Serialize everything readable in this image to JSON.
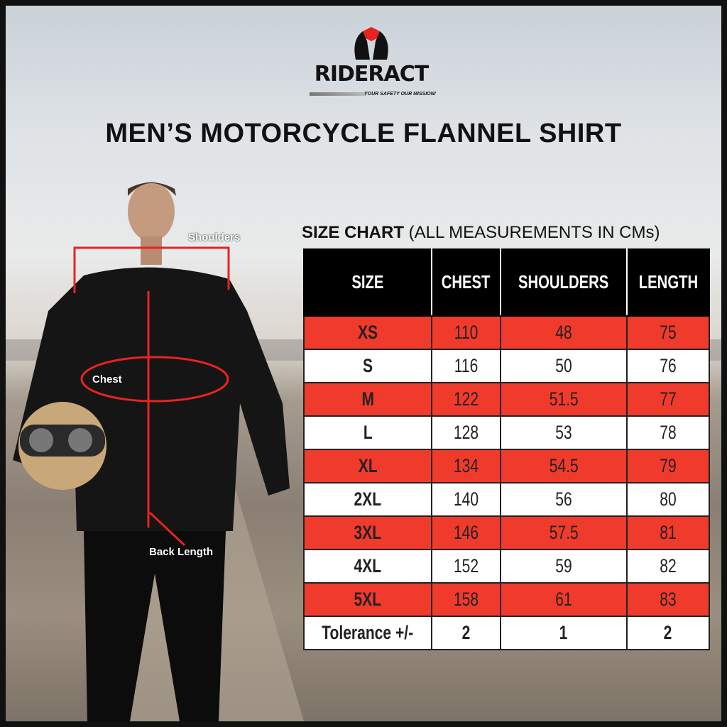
{
  "brand": {
    "name": "RIDERACT",
    "tagline": "YOUR SAFETY OUR MISSION!",
    "colors": {
      "red": "#e8231f",
      "black": "#111111"
    }
  },
  "title": "MEN’S MOTORCYCLE FLANNEL SHIRT",
  "size_chart": {
    "heading": "SIZE CHART",
    "note": "(ALL MEASUREMENTS IN CMs)",
    "columns": [
      "SIZE",
      "CHEST",
      "SHOULDERS",
      "LENGTH"
    ],
    "rows": [
      [
        "XS",
        "110",
        "48",
        "75"
      ],
      [
        "S",
        "116",
        "50",
        "76"
      ],
      [
        "M",
        "122",
        "51.5",
        "77"
      ],
      [
        "L",
        "128",
        "53",
        "78"
      ],
      [
        "XL",
        "134",
        "54.5",
        "79"
      ],
      [
        "2XL",
        "140",
        "56",
        "80"
      ],
      [
        "3XL",
        "146",
        "57.5",
        "81"
      ],
      [
        "4XL",
        "152",
        "59",
        "82"
      ],
      [
        "5XL",
        "158",
        "61",
        "83"
      ]
    ],
    "tolerance": [
      "Tolerance +/-",
      "2",
      "1",
      "2"
    ],
    "row_colors": {
      "odd": "#f03a2c",
      "even": "#ffffff",
      "header": "#000000"
    }
  },
  "annotations": {
    "shoulders": "Shoulders",
    "chest": "Chest",
    "back_length": "Back Length"
  }
}
